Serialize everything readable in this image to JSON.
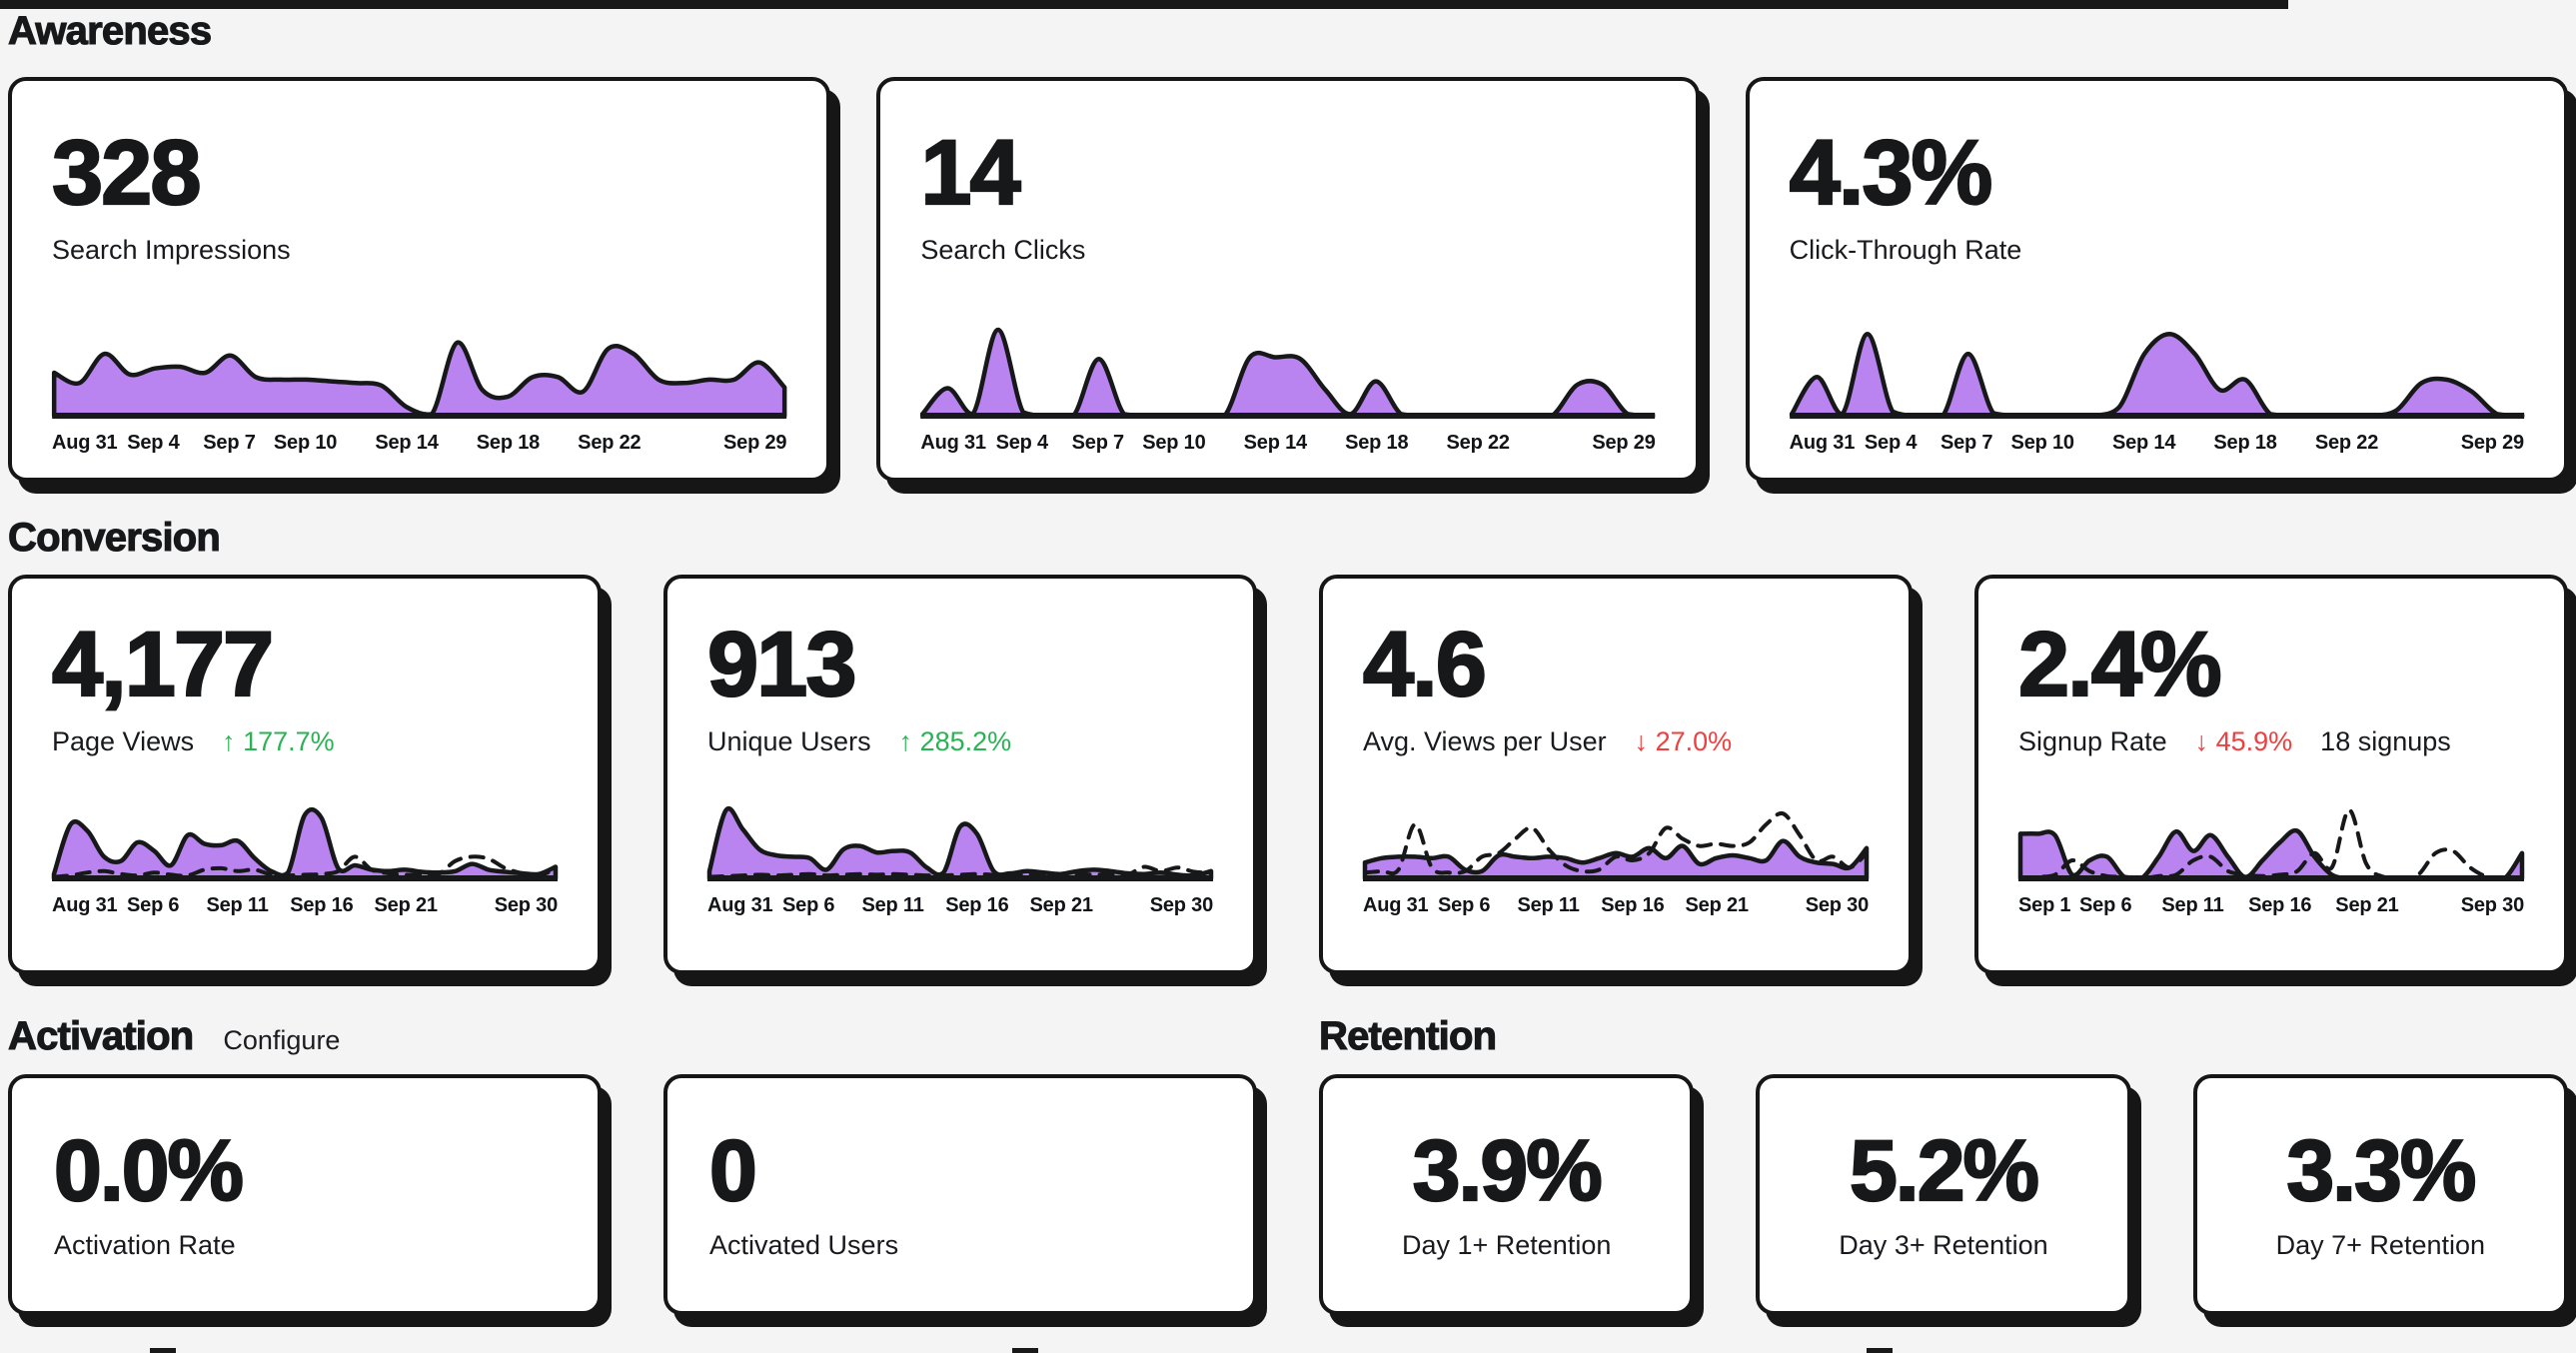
{
  "theme": {
    "background": "#f4f4f5",
    "card": "#ffffff",
    "ink": "#17181a",
    "purple": "#b983f0",
    "green": "#2bb254",
    "red": "#ee4040"
  },
  "sections": {
    "awareness": {
      "title": "Awareness",
      "cards": [
        {
          "value": "328",
          "label": "Search Impressions",
          "spark": {
            "days": 29,
            "ticks": [
              {
                "label": "Aug 31",
                "day": 0
              },
              {
                "label": "Sep 4",
                "day": 4
              },
              {
                "label": "Sep 7",
                "day": 7
              },
              {
                "label": "Sep 10",
                "day": 10
              },
              {
                "label": "Sep 14",
                "day": 14
              },
              {
                "label": "Sep 18",
                "day": 18
              },
              {
                "label": "Sep 22",
                "day": 22
              },
              {
                "label": "Sep 29",
                "day": 29
              }
            ],
            "solid": [
              0.5,
              0.38,
              0.72,
              0.48,
              0.55,
              0.57,
              0.5,
              0.7,
              0.45,
              0.42,
              0.42,
              0.4,
              0.38,
              0.35,
              0.1,
              0.02,
              0.85,
              0.3,
              0.22,
              0.45,
              0.45,
              0.28,
              0.78,
              0.72,
              0.42,
              0.38,
              0.42,
              0.42,
              0.62,
              0.33
            ]
          }
        },
        {
          "value": "14",
          "label": "Search Clicks",
          "spark": {
            "days": 29,
            "ticks": [
              {
                "label": "Aug 31",
                "day": 0
              },
              {
                "label": "Sep 4",
                "day": 4
              },
              {
                "label": "Sep 7",
                "day": 7
              },
              {
                "label": "Sep 10",
                "day": 10
              },
              {
                "label": "Sep 14",
                "day": 14
              },
              {
                "label": "Sep 18",
                "day": 18
              },
              {
                "label": "Sep 22",
                "day": 22
              },
              {
                "label": "Sep 29",
                "day": 29
              }
            ],
            "solid": [
              0.02,
              0.32,
              0.02,
              1.0,
              0.04,
              0,
              0,
              0.66,
              0.02,
              0,
              0,
              0,
              0,
              0.68,
              0.68,
              0.66,
              0.3,
              0.02,
              0.4,
              0.02,
              0,
              0,
              0,
              0,
              0,
              0,
              0.36,
              0.36,
              0.02,
              0
            ]
          }
        },
        {
          "value": "4.3%",
          "label": "Click-Through Rate",
          "spark": {
            "days": 29,
            "ticks": [
              {
                "label": "Aug 31",
                "day": 0
              },
              {
                "label": "Sep 4",
                "day": 4
              },
              {
                "label": "Sep 7",
                "day": 7
              },
              {
                "label": "Sep 10",
                "day": 10
              },
              {
                "label": "Sep 14",
                "day": 14
              },
              {
                "label": "Sep 18",
                "day": 18
              },
              {
                "label": "Sep 22",
                "day": 22
              },
              {
                "label": "Sep 29",
                "day": 29
              }
            ],
            "solid": [
              0.02,
              0.45,
              0.02,
              0.95,
              0.05,
              0,
              0,
              0.72,
              0.03,
              0,
              0,
              0,
              0,
              0.1,
              0.72,
              0.95,
              0.72,
              0.3,
              0.42,
              0.02,
              0,
              0,
              0,
              0,
              0.06,
              0.38,
              0.42,
              0.28,
              0.02,
              0
            ]
          }
        }
      ]
    },
    "conversion": {
      "title": "Conversion",
      "cards": [
        {
          "value": "4,177",
          "label": "Page Views",
          "delta": {
            "arrow": "↑",
            "text": "177.7%",
            "type": "up"
          },
          "spark": {
            "days": 30,
            "ticks": [
              {
                "label": "Aug 31",
                "day": 0
              },
              {
                "label": "Sep 6",
                "day": 6
              },
              {
                "label": "Sep 11",
                "day": 11
              },
              {
                "label": "Sep 16",
                "day": 16
              },
              {
                "label": "Sep 21",
                "day": 21
              },
              {
                "label": "Sep 30",
                "day": 30
              }
            ],
            "solid": [
              0.06,
              0.75,
              0.66,
              0.3,
              0.24,
              0.5,
              0.38,
              0.18,
              0.6,
              0.48,
              0.46,
              0.52,
              0.28,
              0.1,
              0.08,
              0.88,
              0.84,
              0.14,
              0.18,
              0.12,
              0.1,
              0.12,
              0.09,
              0.08,
              0.1,
              0.2,
              0.12,
              0.09,
              0.07,
              0.06,
              0.16
            ],
            "dashed": [
              0.02,
              0.04,
              0.08,
              0.1,
              0.06,
              0.04,
              0.08,
              0.05,
              0.04,
              0.12,
              0.14,
              0.1,
              0.12,
              0.05,
              0.04,
              0.05,
              0.06,
              0.1,
              0.3,
              0.12,
              0.07,
              0.05,
              0.05,
              0.06,
              0.24,
              0.3,
              0.27,
              0.14,
              0.07,
              0.04,
              0.13
            ]
          }
        },
        {
          "value": "913",
          "label": "Unique Users",
          "delta": {
            "arrow": "↑",
            "text": "285.2%",
            "type": "up"
          },
          "spark": {
            "days": 30,
            "ticks": [
              {
                "label": "Aug 31",
                "day": 0
              },
              {
                "label": "Sep 6",
                "day": 6
              },
              {
                "label": "Sep 11",
                "day": 11
              },
              {
                "label": "Sep 16",
                "day": 16
              },
              {
                "label": "Sep 21",
                "day": 21
              },
              {
                "label": "Sep 30",
                "day": 30
              }
            ],
            "solid": [
              0.1,
              0.95,
              0.68,
              0.4,
              0.32,
              0.3,
              0.28,
              0.12,
              0.4,
              0.45,
              0.36,
              0.38,
              0.36,
              0.15,
              0.08,
              0.72,
              0.62,
              0.1,
              0.07,
              0.1,
              0.08,
              0.06,
              0.1,
              0.12,
              0.1,
              0.07,
              0.06,
              0.08,
              0.05,
              0.04,
              0.1
            ],
            "dashed": [
              0.02,
              0.03,
              0.04,
              0.05,
              0.04,
              0.05,
              0.06,
              0.04,
              0.05,
              0.06,
              0.05,
              0.06,
              0.05,
              0.04,
              0.04,
              0.05,
              0.06,
              0.05,
              0.04,
              0.06,
              0.05,
              0.04,
              0.06,
              0.05,
              0.06,
              0.05,
              0.16,
              0.1,
              0.15,
              0.09,
              0.08
            ]
          }
        },
        {
          "value": "4.6",
          "label": "Avg. Views per User",
          "delta": {
            "arrow": "↓",
            "text": "27.0%",
            "type": "down"
          },
          "spark": {
            "days": 30,
            "ticks": [
              {
                "label": "Aug 31",
                "day": 0
              },
              {
                "label": "Sep 6",
                "day": 6
              },
              {
                "label": "Sep 11",
                "day": 11
              },
              {
                "label": "Sep 16",
                "day": 16
              },
              {
                "label": "Sep 21",
                "day": 21
              },
              {
                "label": "Sep 30",
                "day": 30
              }
            ],
            "solid": [
              0.22,
              0.28,
              0.3,
              0.3,
              0.28,
              0.3,
              0.12,
              0.1,
              0.32,
              0.3,
              0.28,
              0.3,
              0.28,
              0.22,
              0.28,
              0.35,
              0.3,
              0.42,
              0.28,
              0.45,
              0.2,
              0.28,
              0.32,
              0.28,
              0.25,
              0.52,
              0.3,
              0.22,
              0.2,
              0.15,
              0.42
            ],
            "dashed": [
              0.08,
              0.1,
              0.12,
              0.75,
              0.15,
              0.08,
              0.1,
              0.3,
              0.35,
              0.55,
              0.7,
              0.4,
              0.18,
              0.1,
              0.12,
              0.3,
              0.25,
              0.35,
              0.7,
              0.55,
              0.45,
              0.48,
              0.45,
              0.5,
              0.75,
              0.9,
              0.6,
              0.25,
              0.3,
              0.15,
              0.35
            ]
          }
        },
        {
          "value": "2.4%",
          "label": "Signup Rate",
          "delta": {
            "arrow": "↓",
            "text": "45.9%",
            "type": "down"
          },
          "extra": "18 signups",
          "spark": {
            "days": 29,
            "ticks": [
              {
                "label": "Sep 1",
                "day": 0
              },
              {
                "label": "Sep 6",
                "day": 5
              },
              {
                "label": "Sep 11",
                "day": 10
              },
              {
                "label": "Sep 16",
                "day": 15
              },
              {
                "label": "Sep 21",
                "day": 20
              },
              {
                "label": "Sep 30",
                "day": 29
              }
            ],
            "solid": [
              0.62,
              0.62,
              0.6,
              0.05,
              0.25,
              0.3,
              0.02,
              0,
              0.3,
              0.65,
              0.38,
              0.6,
              0.3,
              0.02,
              0.25,
              0.5,
              0.66,
              0.3,
              0.05,
              0,
              0,
              0,
              0,
              0,
              0,
              0,
              0,
              0,
              0,
              0.35
            ],
            "dashed": [
              0,
              0.02,
              0.05,
              0.25,
              0.1,
              0.03,
              0.02,
              0,
              0.03,
              0.05,
              0.25,
              0.3,
              0.1,
              0.05,
              0.03,
              0.05,
              0.1,
              0.35,
              0.15,
              0.95,
              0.2,
              0.02,
              0,
              0.05,
              0.35,
              0.38,
              0.15,
              0.02,
              0,
              0
            ]
          }
        }
      ]
    },
    "activation": {
      "title": "Activation",
      "link_label": "Configure",
      "cards": [
        {
          "value": "0.0%",
          "label": "Activation Rate"
        },
        {
          "value": "0",
          "label": "Activated Users"
        }
      ]
    },
    "retention": {
      "title": "Retention",
      "cards": [
        {
          "value": "3.9%",
          "label": "Day 1+ Retention"
        },
        {
          "value": "5.2%",
          "label": "Day 3+ Retention"
        },
        {
          "value": "3.3%",
          "label": "Day 7+ Retention"
        }
      ]
    }
  }
}
